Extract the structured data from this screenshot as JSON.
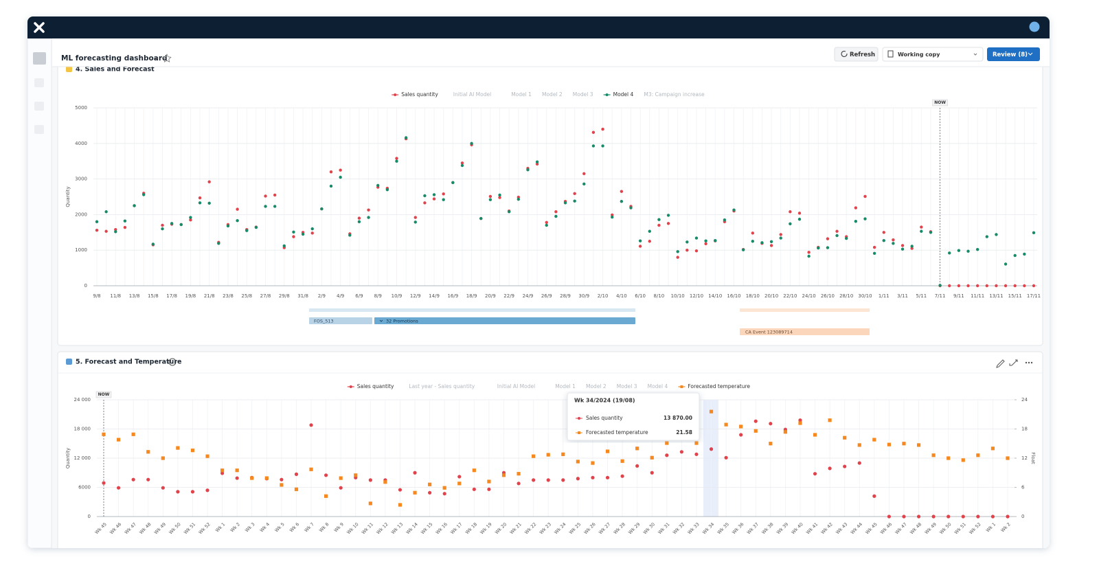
{
  "header": {
    "app_title": "ML forecasting dashboard",
    "buttons": [
      "Refresh",
      "Working copy",
      "Review (8)"
    ]
  },
  "chart_data": [
    {
      "type": "line",
      "title": "4. Sales and Forecast",
      "ylabel": "Quantity",
      "categories": [
        "9/8",
        null,
        "11/8",
        null,
        "13/8",
        null,
        "15/8",
        null,
        "17/8",
        null,
        "19/8",
        null,
        "21/8",
        null,
        "23/8",
        null,
        "25/8",
        null,
        "27/8",
        null,
        "29/8",
        null,
        "31/8",
        null,
        "2/9",
        null,
        "4/9",
        null,
        "6/9",
        null,
        "8/9",
        null,
        "10/9",
        null,
        "12/9",
        null,
        "14/9",
        null,
        "16/9",
        null,
        "18/9",
        null,
        "20/9",
        null,
        "22/9",
        null,
        "24/9",
        null,
        "26/9",
        null,
        "28/9",
        null,
        "30/9",
        null,
        "2/10",
        null,
        "4/10",
        null,
        "6/10",
        null,
        "8/10",
        null,
        "10/10",
        null,
        "12/10",
        null,
        "14/10",
        null,
        "16/10",
        null,
        "18/10",
        null,
        "20/10",
        null,
        "22/10",
        null,
        "24/10",
        null,
        "26/10",
        null,
        "28/10",
        null,
        "30/10",
        null,
        "1/11",
        null,
        "3/11",
        null,
        "5/11",
        null,
        "7/11",
        null,
        "9/11",
        null,
        "11/11",
        null,
        "13/11",
        null,
        "15/11",
        null,
        "17/11"
      ],
      "series": [
        {
          "name": "Sales quantity",
          "color": "#e0434b",
          "marker": "circle",
          "values": [
            1560,
            1530,
            1580,
            1640,
            2250,
            2600,
            1150,
            1700,
            1730,
            1720,
            1850,
            2470,
            2920,
            1220,
            1720,
            2150,
            1580,
            1650,
            2520,
            2550,
            1070,
            1380,
            1500,
            1480,
            2160,
            3200,
            3250,
            1460,
            1900,
            2130,
            2770,
            2740,
            3580,
            4130,
            1920,
            2330,
            2440,
            2580,
            2900,
            3450,
            3960,
            1890,
            2510,
            2480,
            2100,
            2490,
            3300,
            3420,
            1780,
            2080,
            2370,
            2590,
            3150,
            4310,
            4400,
            1990,
            2650,
            2230,
            1110,
            1250,
            1700,
            1750,
            800,
            1000,
            980,
            1180,
            1260,
            1800,
            2100,
            1020,
            1480,
            1190,
            1130,
            1440,
            2080,
            2040,
            940,
            1080,
            1320,
            1530,
            1380,
            2190,
            2510,
            1080,
            1500,
            1290,
            1130,
            1050,
            1650,
            1520,
            0,
            0,
            0,
            0,
            0,
            0,
            0,
            0,
            0,
            0,
            0
          ]
        },
        {
          "name": "Initial AI Model",
          "visible": false
        },
        {
          "name": "Model 1",
          "visible": false
        },
        {
          "name": "Model 2",
          "visible": false
        },
        {
          "name": "Model 3",
          "visible": false
        },
        {
          "name": "Model 4",
          "color": "#178a68",
          "marker": "circle",
          "values": [
            1800,
            2080,
            1520,
            1820,
            2250,
            2560,
            1170,
            1600,
            1750,
            1720,
            1920,
            2330,
            2320,
            1190,
            1680,
            1830,
            1550,
            1640,
            2230,
            2230,
            1120,
            1510,
            1450,
            1600,
            2160,
            2800,
            3050,
            1420,
            1800,
            1920,
            2820,
            2700,
            3500,
            4160,
            1790,
            2530,
            2560,
            2420,
            2900,
            3380,
            4000,
            1890,
            2420,
            2550,
            2080,
            2430,
            3260,
            3480,
            1700,
            1950,
            2330,
            2380,
            2860,
            3930,
            3930,
            1930,
            2370,
            2190,
            1260,
            1530,
            1860,
            1980,
            960,
            1230,
            1340,
            1260,
            1270,
            1850,
            2130,
            1010,
            1250,
            1210,
            1240,
            1340,
            1740,
            1870,
            830,
            1060,
            1070,
            1410,
            1330,
            1810,
            1880,
            910,
            1270,
            1190,
            1030,
            1110,
            1530,
            1500,
            10,
            920,
            990,
            970,
            1020,
            1380,
            1440,
            610,
            850,
            890,
            1490
          ]
        },
        {
          "name": "M3: Campaign increase",
          "visible": false
        }
      ],
      "ylim": [
        0,
        5000
      ],
      "yticks": [
        0,
        1000,
        2000,
        3000,
        4000,
        5000
      ],
      "grid": true,
      "now_marker": {
        "label": "NOW",
        "at": "7/11"
      },
      "events": [
        "FOS_513",
        "32 Promotions",
        "CA Event 123089714"
      ]
    },
    {
      "type": "line",
      "title": "5. Forecast and Temperature",
      "ylabel": "Quantity",
      "y2label": "Float",
      "categories": [
        "Wk 45",
        "Wk 46",
        "Wk 47",
        "Wk 48",
        "Wk 49",
        "Wk 50",
        "Wk 51",
        "Wk 52",
        "Wk 1",
        "Wk 2",
        "Wk 3",
        "Wk 4",
        "Wk 5",
        "Wk 6",
        "Wk 7",
        "Wk 8",
        "Wk 9",
        "Wk 10",
        "Wk 11",
        "Wk 12",
        "Wk 13",
        "Wk 14",
        "Wk 15",
        "Wk 16",
        "Wk 17",
        "Wk 18",
        "Wk 19",
        "Wk 20",
        "Wk 21",
        "Wk 22",
        "Wk 23",
        "Wk 24",
        "Wk 25",
        "Wk 26",
        "Wk 27",
        "Wk 28",
        "Wk 29",
        "Wk 30",
        "Wk 31",
        "Wk 32",
        "Wk 33",
        "Wk 34",
        "Wk 35",
        "Wk 36",
        "Wk 37",
        "Wk 38",
        "Wk 39",
        "Wk 40",
        "Wk 41",
        "Wk 42",
        "Wk 43",
        "Wk 44",
        "Wk 45",
        "Wk 46",
        "Wk 47",
        "Wk 48",
        "Wk 49",
        "Wk 50",
        "Wk 51",
        "Wk 52",
        "Wk 1",
        "Wk 2"
      ],
      "series": [
        {
          "name": "Sales quantity",
          "color": "#e0434b",
          "marker": "circle",
          "values": [
            6900,
            5900,
            7600,
            7600,
            5900,
            5100,
            5100,
            5400,
            8900,
            7900,
            8000,
            7800,
            7600,
            8700,
            18800,
            8500,
            5900,
            8000,
            7500,
            7500,
            5500,
            9000,
            4900,
            4700,
            8200,
            5600,
            5600,
            9000,
            6800,
            7500,
            7500,
            7500,
            7800,
            8000,
            8000,
            8300,
            10400,
            9000,
            12600,
            13300,
            12800,
            13870,
            12100,
            16800,
            19600,
            19100,
            17900,
            19800,
            8800,
            9900,
            10300,
            11000,
            4200,
            0,
            0,
            0,
            0,
            0,
            0,
            0,
            0,
            0
          ]
        },
        {
          "name": "Last year - Sales quantity",
          "visible": false
        },
        {
          "name": "Initial AI Model",
          "visible": false
        },
        {
          "name": "Model 1",
          "visible": false
        },
        {
          "name": "Model 2",
          "visible": false
        },
        {
          "name": "Model 3",
          "visible": false
        },
        {
          "name": "Model 4",
          "visible": false
        },
        {
          "name": "Forecasted temperature",
          "color": "#f5891f",
          "marker": "square",
          "axis": "y2",
          "values": [
            16.9,
            15.8,
            16.9,
            13.3,
            12.0,
            14.1,
            13.6,
            12.4,
            9.5,
            9.5,
            7.9,
            7.9,
            6.5,
            5.6,
            9.7,
            4.2,
            7.9,
            8.5,
            2.7,
            7.1,
            2.4,
            4.9,
            6.6,
            5.9,
            6.8,
            9.5,
            7.2,
            8.5,
            8.8,
            12.4,
            12.7,
            12.8,
            11.3,
            11.0,
            13.4,
            11.4,
            14.0,
            12.1,
            15.1,
            17.2,
            15.1,
            21.58,
            18.9,
            18.5,
            17.6,
            15.0,
            17.4,
            19.2,
            16.8,
            19.8,
            16.2,
            14.7,
            15.8,
            14.8,
            15.0,
            14.7,
            12.6,
            12.0,
            11.6,
            12.6,
            14.0,
            12.0
          ]
        }
      ],
      "ylim": [
        0,
        24000
      ],
      "yticks": [
        0,
        6000,
        {
          "value": 12000,
          "label": "12 000"
        },
        {
          "value": 18000,
          "label": "18 000"
        },
        {
          "value": 24000,
          "label": "24 000"
        }
      ],
      "y2lim": [
        0,
        24
      ],
      "y2ticks": [
        0,
        6,
        12,
        18,
        24
      ],
      "grid": true,
      "now_marker": {
        "label": "NOW",
        "at": "Wk 45"
      },
      "tooltip": {
        "title": "Wk 34/2024 (19/08)",
        "rows": [
          {
            "name": "Sales quantity",
            "value": "13 870.00"
          },
          {
            "name": "Forecasted temperature",
            "value": "21.58"
          }
        ]
      }
    }
  ]
}
